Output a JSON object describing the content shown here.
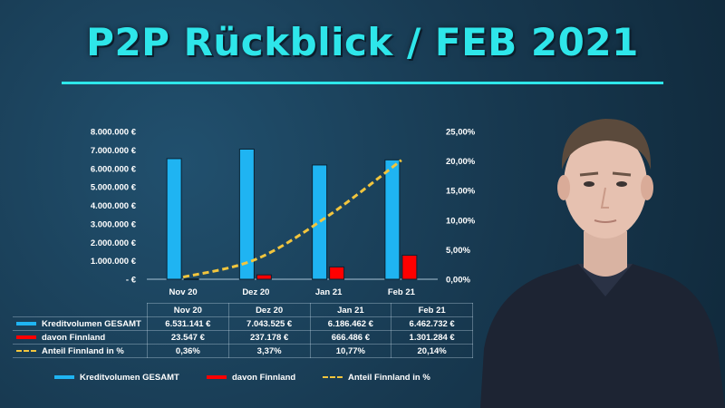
{
  "title": "P2P Rückblick / FEB 2021",
  "colors": {
    "accent": "#2ee6ea",
    "bar_total": "#1fb4f2",
    "bar_finnland": "#ff0000",
    "line_share": "#f2c53d"
  },
  "chart_data": {
    "type": "bar",
    "categories": [
      "Nov 20",
      "Dez 20",
      "Jan 21",
      "Feb 21"
    ],
    "series": [
      {
        "name": "Kreditvolumen GESAMT",
        "type": "bar",
        "axis": "left",
        "values": [
          6531141,
          7043525,
          6186462,
          6462732
        ]
      },
      {
        "name": "davon Finnland",
        "type": "bar",
        "axis": "left",
        "values": [
          23547,
          237178,
          666486,
          1301284
        ]
      },
      {
        "name": "Anteil Finnland in %",
        "type": "line",
        "axis": "right",
        "values": [
          0.36,
          3.37,
          10.77,
          20.14
        ]
      }
    ],
    "ylim": [
      0,
      8000000
    ],
    "y2lim": [
      0,
      25
    ],
    "y_ticks": [
      "8.000.000 €",
      "7.000.000 €",
      "6.000.000 €",
      "5.000.000 €",
      "4.000.000 €",
      "3.000.000 €",
      "2.000.000 €",
      "1.000.000 €",
      "- €"
    ],
    "y2_ticks": [
      "25,00%",
      "20,00%",
      "15,00%",
      "10,00%",
      "5,00%",
      "0,00%"
    ],
    "legend_position": "bottom"
  },
  "table": {
    "headers": [
      "Nov 20",
      "Dez 20",
      "Jan 21",
      "Feb 21"
    ],
    "rows": [
      {
        "label": "Kreditvolumen GESAMT",
        "values": [
          "6.531.141 €",
          "7.043.525 €",
          "6.186.462 €",
          "6.462.732 €"
        ]
      },
      {
        "label": "davon Finnland",
        "values": [
          "23.547 €",
          "237.178 €",
          "666.486 €",
          "1.301.284 €"
        ]
      },
      {
        "label": "Anteil Finnland in %",
        "values": [
          "0,36%",
          "3,37%",
          "10,77%",
          "20,14%"
        ]
      }
    ]
  },
  "legend": [
    "Kreditvolumen GESAMT",
    "davon Finnland",
    "Anteil Finnland in %"
  ]
}
